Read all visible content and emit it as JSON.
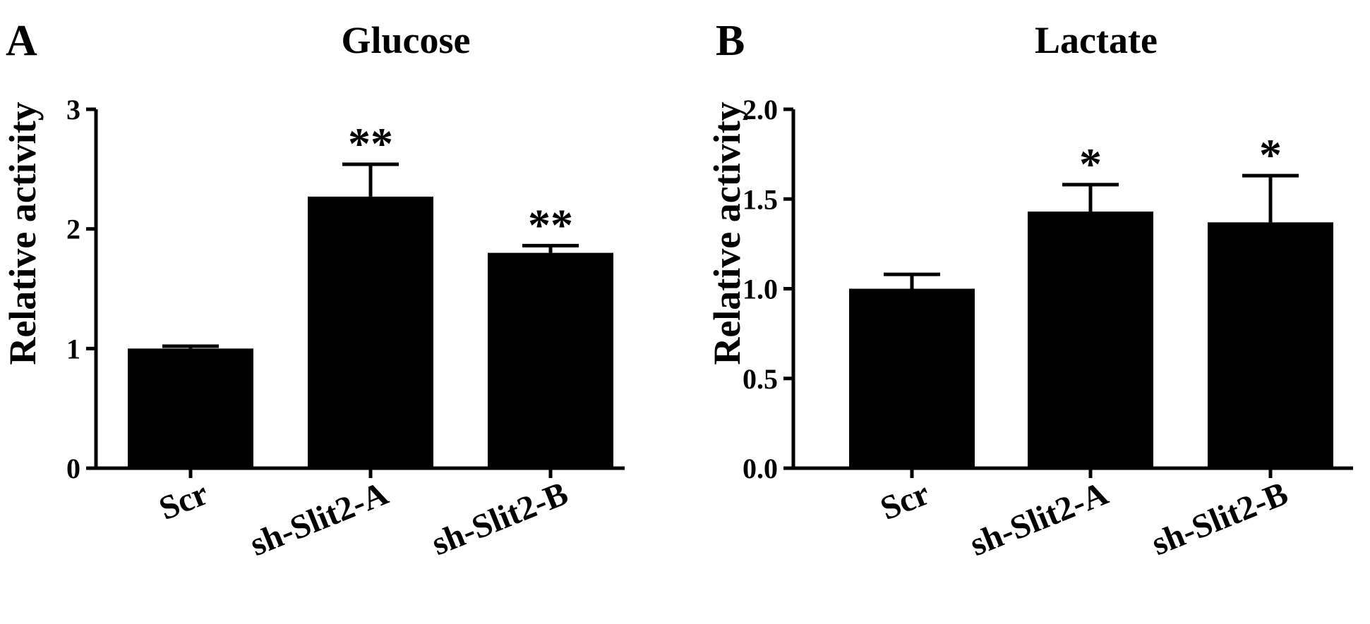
{
  "chart_data": [
    {
      "type": "bar",
      "panel": "A",
      "title": "Glucose",
      "xlabel": "",
      "ylabel": "Relative activity",
      "ylim": [
        0,
        3
      ],
      "yticks": [
        "0",
        "1",
        "2",
        "3"
      ],
      "ytick_values": [
        0,
        1,
        2,
        3
      ],
      "categories": [
        "Scr",
        "sh-Slit2-A",
        "sh-Slit2-B"
      ],
      "values": [
        1.0,
        2.27,
        1.8
      ],
      "errors": [
        0.02,
        0.27,
        0.06
      ],
      "significance": [
        "",
        "**",
        "**"
      ],
      "bar_color": "#000000"
    },
    {
      "type": "bar",
      "panel": "B",
      "title": "Lactate",
      "xlabel": "",
      "ylabel": "Relative activity",
      "ylim": [
        0,
        2
      ],
      "yticks": [
        "0.0",
        "0.5",
        "1.0",
        "1.5",
        "2.0"
      ],
      "ytick_values": [
        0,
        0.5,
        1.0,
        1.5,
        2.0
      ],
      "categories": [
        "Scr",
        "sh-Slit2-A",
        "sh-Slit2-B"
      ],
      "values": [
        1.0,
        1.43,
        1.37
      ],
      "errors": [
        0.08,
        0.15,
        0.26
      ],
      "significance": [
        "",
        "*",
        "*"
      ],
      "bar_color": "#000000"
    }
  ]
}
